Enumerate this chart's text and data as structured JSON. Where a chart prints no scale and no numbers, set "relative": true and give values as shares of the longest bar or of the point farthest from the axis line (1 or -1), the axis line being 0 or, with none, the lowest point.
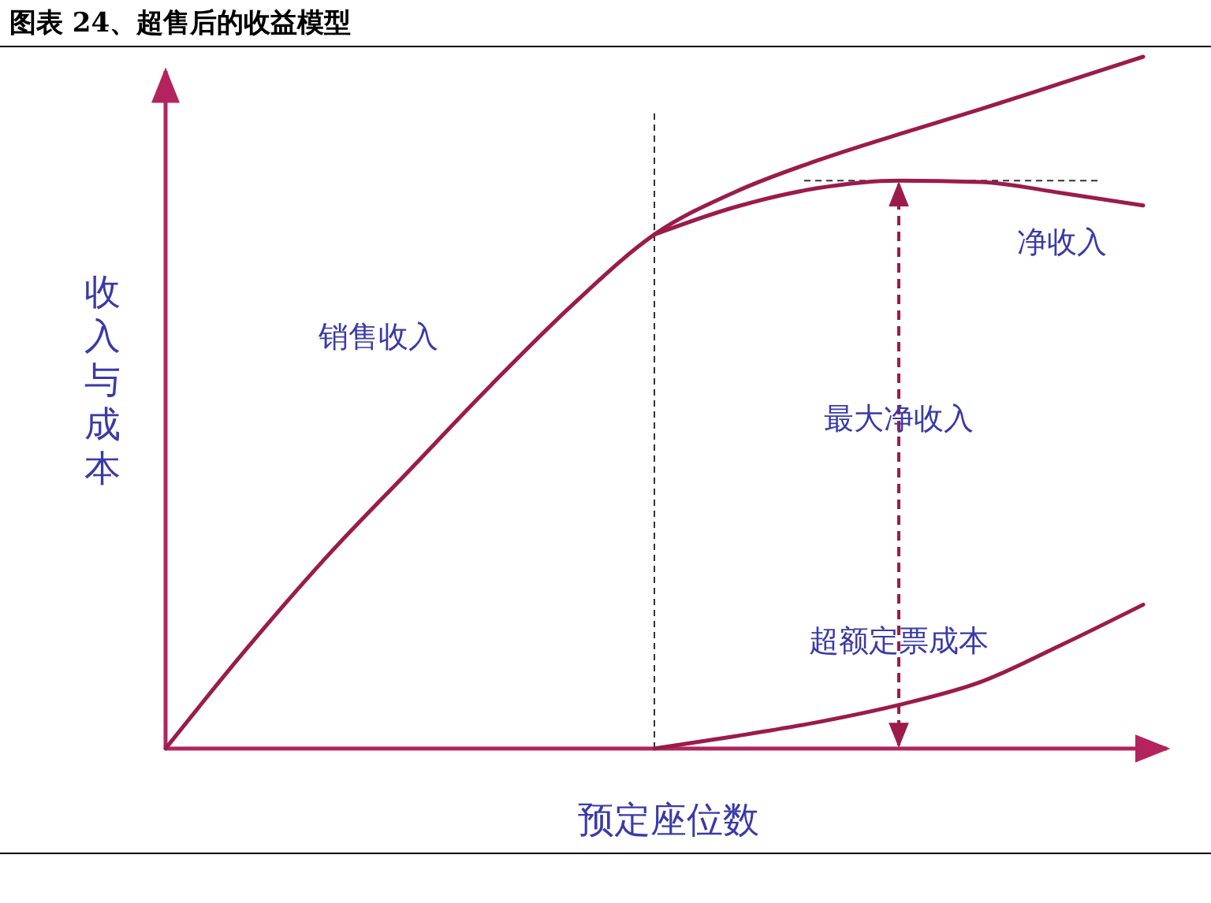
{
  "chart_data": {
    "type": "line",
    "title": "图表 24、超售后的收益模型",
    "xlabel": "预定座位数",
    "ylabel": "收入与成本",
    "relative": true,
    "legend": false,
    "marker": "none",
    "line_style": "solid",
    "categories": [
      null,
      null,
      null,
      null,
      null,
      null,
      null,
      null,
      null,
      null,
      null,
      null,
      null
    ],
    "series": [
      {
        "name": "销售收入",
        "color": "#9b1b4a",
        "values": [
          0,
          0.145,
          0.28,
          0.403,
          0.526,
          0.642,
          0.743,
          0.805,
          0.85,
          0.888,
          0.924,
          0.962,
          1
        ]
      },
      {
        "name": "净收入",
        "color": "#9b1b4a",
        "values": [
          null,
          null,
          null,
          null,
          null,
          null,
          0.743,
          0.783,
          0.81,
          0.821,
          0.819,
          0.803,
          0.785
        ]
      },
      {
        "name": "超额定票成本",
        "color": "#9b1b4a",
        "values": [
          null,
          null,
          null,
          null,
          null,
          null,
          0,
          0.018,
          0.038,
          0.063,
          0.096,
          0.15,
          0.208
        ]
      }
    ],
    "ref_lines": [
      {
        "axis": "y",
        "value": 0.821,
        "color": "#333333",
        "line_style": "dashed"
      }
    ],
    "annotations": [
      "最大净收入"
    ]
  }
}
